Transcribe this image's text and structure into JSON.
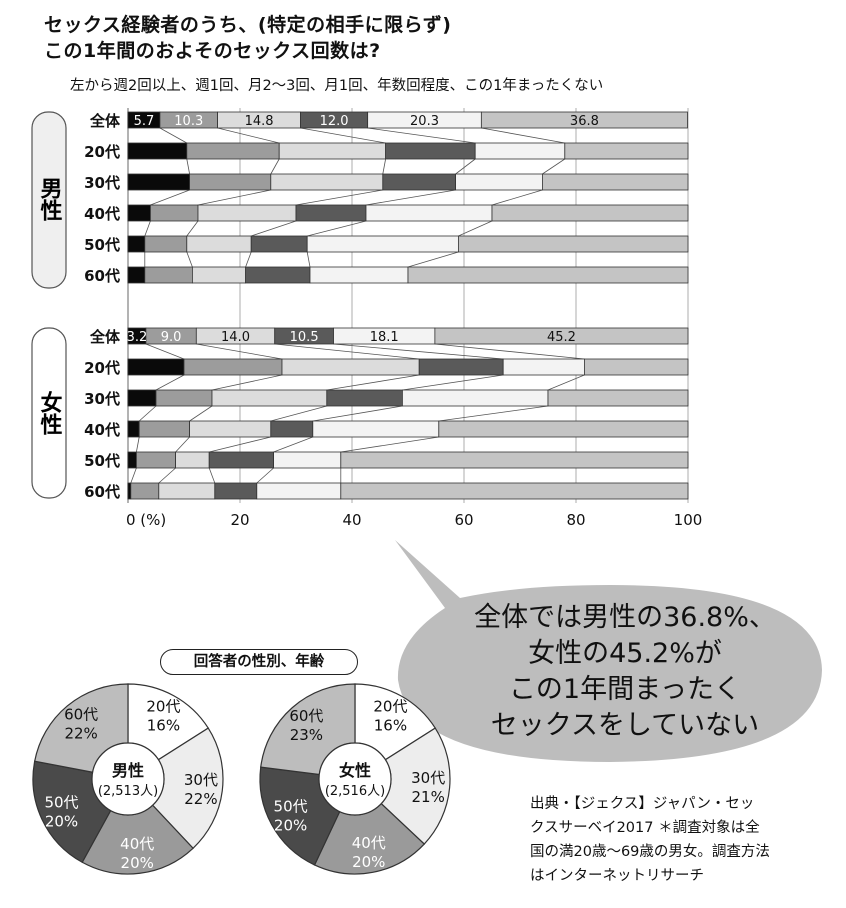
{
  "title": {
    "line1": "セックス経験者のうち、(特定の相手に限らず)",
    "line2": "この1年間のおよそのセックス回数は?"
  },
  "subtitle": "左から週2回以上、週1回、月2〜3回、月1回、年数回程度、この1年まったくない",
  "groups": {
    "male": "男性",
    "female": "女性"
  },
  "palette": [
    "#0a0a0a",
    "#9c9c9c",
    "#dcdcdc",
    "#5a5a5a",
    "#f3f3f3",
    "#c4c4c4"
  ],
  "chart_data": [
    {
      "type": "bar",
      "orientation": "horizontal",
      "stacked": true,
      "percent_stacked": true,
      "categories_note": "週2回以上, 週1回, 月2〜3回, 月1回, 年数回程度, この1年まったくない",
      "xlim": [
        0,
        100
      ],
      "xticks": [
        "0 (%)",
        "20",
        "40",
        "60",
        "80",
        "100"
      ],
      "xtick_values": [
        0,
        20,
        40,
        60,
        80,
        100
      ],
      "grid": true,
      "groups": [
        {
          "label": "男性",
          "rows": [
            {
              "label": "全体",
              "values": [
                5.7,
                10.3,
                14.8,
                12.0,
                20.3,
                36.8
              ],
              "show_labels": true
            },
            {
              "label": "20代",
              "values": [
                10.5,
                16.5,
                19.0,
                16.0,
                16.0,
                22.0
              ],
              "show_labels": false
            },
            {
              "label": "30代",
              "values": [
                11.0,
                14.5,
                20.0,
                13.0,
                15.5,
                26.0
              ],
              "show_labels": false
            },
            {
              "label": "40代",
              "values": [
                4.0,
                8.5,
                17.5,
                12.5,
                22.5,
                35.0
              ],
              "show_labels": false
            },
            {
              "label": "50代",
              "values": [
                3.0,
                7.5,
                11.5,
                10.0,
                27.0,
                41.0
              ],
              "show_labels": false
            },
            {
              "label": "60代",
              "values": [
                3.0,
                8.5,
                9.5,
                11.5,
                17.5,
                50.0
              ],
              "show_labels": false
            }
          ]
        },
        {
          "label": "女性",
          "rows": [
            {
              "label": "全体",
              "values": [
                3.2,
                9.0,
                14.0,
                10.5,
                18.1,
                45.2
              ],
              "show_labels": true
            },
            {
              "label": "20代",
              "values": [
                10.0,
                17.5,
                24.5,
                15.0,
                14.5,
                18.5
              ],
              "show_labels": false
            },
            {
              "label": "30代",
              "values": [
                5.0,
                10.0,
                20.5,
                13.5,
                26.0,
                25.0
              ],
              "show_labels": false
            },
            {
              "label": "40代",
              "values": [
                2.0,
                9.0,
                14.5,
                7.5,
                22.5,
                44.5
              ],
              "show_labels": false
            },
            {
              "label": "50代",
              "values": [
                1.5,
                7.0,
                6.0,
                11.5,
                12.0,
                62.0
              ],
              "show_labels": false
            },
            {
              "label": "60代",
              "values": [
                0.5,
                5.0,
                10.0,
                7.5,
                15.0,
                62.0
              ],
              "show_labels": false
            }
          ]
        }
      ]
    },
    {
      "type": "pie",
      "style": "donut",
      "center_label": "男性",
      "center_sub": "(2,513人)",
      "slices": [
        {
          "label": "20代",
          "pct": "16%",
          "value": 16,
          "color": "#ffffff",
          "text_color": "#111111"
        },
        {
          "label": "30代",
          "pct": "22%",
          "value": 22,
          "color": "#ededed",
          "text_color": "#111111"
        },
        {
          "label": "40代",
          "pct": "20%",
          "value": 20,
          "color": "#9a9a9a",
          "text_color": "#ffffff"
        },
        {
          "label": "50代",
          "pct": "20%",
          "value": 20,
          "color": "#4a4a4a",
          "text_color": "#ffffff"
        },
        {
          "label": "60代",
          "pct": "22%",
          "value": 22,
          "color": "#bdbdbd",
          "text_color": "#111111"
        }
      ]
    },
    {
      "type": "pie",
      "style": "donut",
      "center_label": "女性",
      "center_sub": "(2,516人)",
      "slices": [
        {
          "label": "20代",
          "pct": "16%",
          "value": 16,
          "color": "#ffffff",
          "text_color": "#111111"
        },
        {
          "label": "30代",
          "pct": "21%",
          "value": 21,
          "color": "#ededed",
          "text_color": "#111111"
        },
        {
          "label": "40代",
          "pct": "20%",
          "value": 20,
          "color": "#9a9a9a",
          "text_color": "#ffffff"
        },
        {
          "label": "50代",
          "pct": "20%",
          "value": 20,
          "color": "#4a4a4a",
          "text_color": "#ffffff"
        },
        {
          "label": "60代",
          "pct": "23%",
          "value": 23,
          "color": "#bdbdbd",
          "text_color": "#111111"
        }
      ]
    }
  ],
  "callout": {
    "lines": [
      "全体では男性の36.8%、",
      "女性の45.2%が",
      "この1年間まったく",
      "セックスをしていない"
    ]
  },
  "pie_header": "回答者の性別、年齢",
  "source": {
    "lines": [
      "出典・【ジェクス】ジャパン・セッ",
      "クスサーベイ2017 ＊調査対象は全",
      "国の満20歳〜69歳の男女。調査方法",
      "はインターネットリサーチ"
    ]
  }
}
